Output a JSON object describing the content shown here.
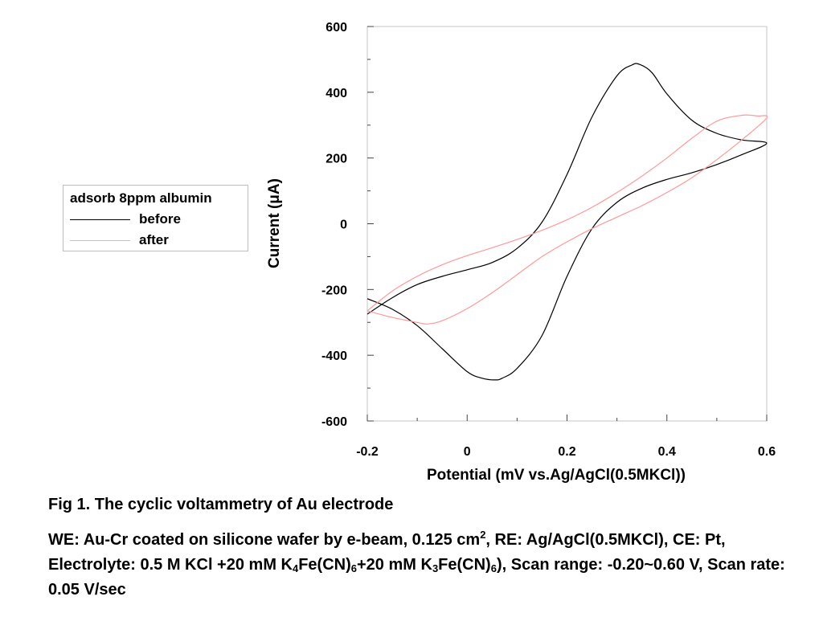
{
  "chart_data": {
    "type": "line",
    "xlabel": "Potential (mV vs.Ag/AgCl(0.5MKCl))",
    "ylabel": "Current (μA)",
    "xlim": [
      -0.2,
      0.6
    ],
    "ylim": [
      -600,
      600
    ],
    "x_ticks": [
      "-0.2",
      "0",
      "0.2",
      "0.4",
      "0.6"
    ],
    "y_ticks": [
      "600",
      "400",
      "200",
      "0",
      "-200",
      "-400",
      "-600"
    ],
    "grid": false,
    "legend_position": "left-middle",
    "legend_title": "adsorb 8ppm albumin",
    "series": [
      {
        "name": "before",
        "color": "#000000",
        "x": [
          -0.2,
          -0.15,
          -0.1,
          -0.05,
          0.0,
          0.05,
          0.1,
          0.15,
          0.2,
          0.25,
          0.3,
          0.33,
          0.345,
          0.37,
          0.4,
          0.45,
          0.5,
          0.55,
          0.6,
          0.55,
          0.5,
          0.45,
          0.4,
          0.35,
          0.3,
          0.25,
          0.2,
          0.15,
          0.1,
          0.07,
          0.055,
          0.03,
          0.0,
          -0.05,
          -0.1,
          -0.15,
          -0.2
        ],
        "y": [
          -275,
          -225,
          -185,
          -160,
          -140,
          -118,
          -75,
          5,
          150,
          325,
          450,
          483,
          485,
          460,
          395,
          315,
          275,
          255,
          245,
          210,
          180,
          155,
          135,
          108,
          65,
          -15,
          -160,
          -340,
          -440,
          -470,
          -475,
          -470,
          -450,
          -380,
          -310,
          -260,
          -228
        ]
      },
      {
        "name": "after",
        "color": "#ff9999",
        "x": [
          -0.2,
          -0.15,
          -0.1,
          -0.05,
          0.0,
          0.05,
          0.1,
          0.15,
          0.2,
          0.25,
          0.3,
          0.35,
          0.4,
          0.45,
          0.5,
          0.55,
          0.58,
          0.6,
          0.55,
          0.5,
          0.45,
          0.4,
          0.35,
          0.3,
          0.25,
          0.2,
          0.15,
          0.1,
          0.05,
          0.0,
          -0.05,
          -0.08,
          -0.1,
          -0.15,
          -0.2
        ],
        "y": [
          -265,
          -205,
          -160,
          -125,
          -97,
          -73,
          -48,
          -20,
          12,
          50,
          95,
          145,
          200,
          260,
          312,
          330,
          328,
          322,
          255,
          195,
          140,
          95,
          55,
          20,
          -15,
          -55,
          -100,
          -155,
          -210,
          -258,
          -295,
          -305,
          -300,
          -285,
          -265
        ]
      }
    ]
  },
  "caption": {
    "title": "Fig  1. The cyclic voltammetry of Au electrode",
    "parts": [
      "WE: Au-Cr coated on silicone wafer by e-beam, 0.125 cm",
      "2",
      ", RE: Ag/AgCl(0.5MKCl), CE: Pt, Electrolyte: 0.5 M KCl +20 mM K",
      "4",
      "Fe(CN)",
      "6",
      "+20 mM K",
      "3",
      "Fe(CN)",
      "6",
      "), Scan range: -0.20~0.60 V, Scan rate: 0.05 V/sec"
    ]
  }
}
